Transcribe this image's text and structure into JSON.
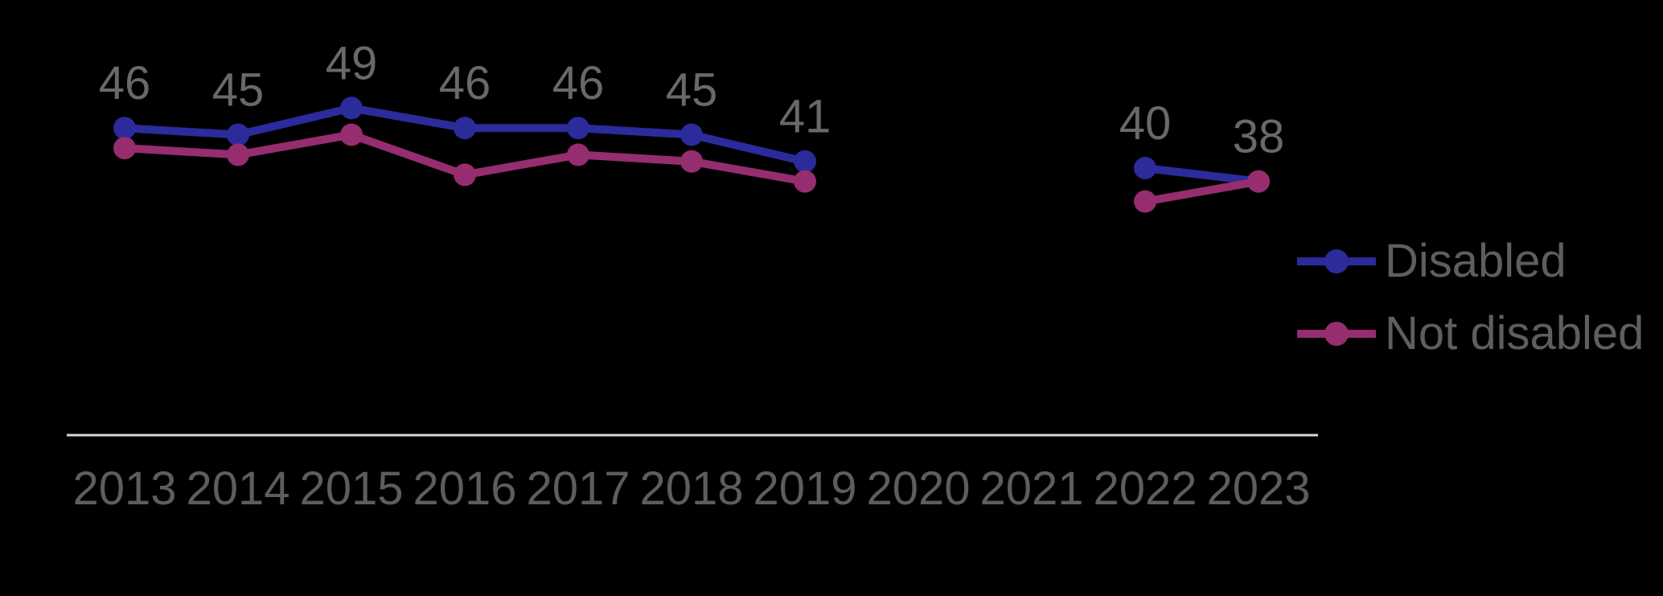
{
  "chart_data": {
    "type": "line",
    "x_categories": [
      "2013",
      "2014",
      "2015",
      "2016",
      "2017",
      "2018",
      "2019",
      "2020",
      "2021",
      "2022",
      "2023"
    ],
    "series": [
      {
        "name": "Disabled",
        "color": "#2b2b9b",
        "values": [
          46,
          45,
          49,
          46,
          46,
          45,
          41,
          null,
          null,
          40,
          38
        ],
        "show_point_labels": true
      },
      {
        "name": "Not disabled",
        "color": "#952d6f",
        "values": [
          43,
          42,
          45,
          39,
          42,
          41,
          38,
          null,
          null,
          35,
          38
        ],
        "show_point_labels": false
      }
    ],
    "point_labels_visible": [
      "46",
      "45",
      "49",
      "46",
      "46",
      "45",
      "41",
      "40",
      "38"
    ],
    "gap_categories": [
      "2020",
      "2021"
    ],
    "ylim": [
      0,
      65
    ],
    "grid": false,
    "y_axis_shown": false,
    "x_axis_line_shown": true,
    "legend_position": "right-middle",
    "colors": {
      "background": "#000000",
      "axis_line": "#d9d9d9",
      "tick_label": "#5d5d5d",
      "point_label": "#696969",
      "legend_label": "#5e5e5e"
    }
  }
}
